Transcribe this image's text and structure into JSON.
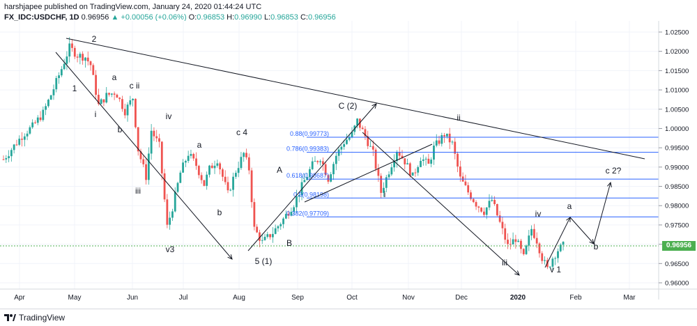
{
  "header": {
    "line1": "harshjapee published on TradingView.com, January 24, 2020 01:44:24 UTC",
    "symbol": "FX_IDC:USDCHF, 1D",
    "last": "0.96956",
    "change": "+0.00056 (+0.06%)",
    "o_label": "O:",
    "o_val": "0.96853",
    "h_label": "H:",
    "h_val": "0.96990",
    "l_label": "L:",
    "l_val": "0.96853",
    "c_label": "C:",
    "c_val": "0.96956"
  },
  "footer": {
    "brand": "TradingView"
  },
  "colors": {
    "up": "#26a69a",
    "down": "#ef5350",
    "fib": "#2962ff",
    "price_line": "#4caf50",
    "trend": "#131722"
  },
  "chart_data": {
    "type": "candlestick",
    "symbol": "FX_IDC:USDCHF",
    "timeframe": "1D",
    "x_ticks": [
      "Apr",
      "May",
      "Jun",
      "Jul",
      "Aug",
      "Sep",
      "Oct",
      "Nov",
      "Dec",
      "2020",
      "Feb",
      "Mar"
    ],
    "ylim": [
      0.955,
      1.0275
    ],
    "y_ticks": [
      "1.02500",
      "1.02000",
      "1.01500",
      "1.01000",
      "1.00500",
      "1.00000",
      "0.99500",
      "0.99000",
      "0.98500",
      "0.98000",
      "0.97500",
      "0.97000",
      "0.96500",
      "0.96000"
    ],
    "current_price": 0.96956,
    "current_price_label": "0.96956",
    "close_path": [
      [
        0,
        0.992
      ],
      [
        8,
        0.9955
      ],
      [
        15,
        0.9985
      ],
      [
        22,
        1.0005
      ],
      [
        30,
        1.004
      ],
      [
        37,
        1.0095
      ],
      [
        44,
        1.0155
      ],
      [
        50,
        1.021
      ],
      [
        56,
        1.019
      ],
      [
        62,
        1.0185
      ],
      [
        66,
        1.0165
      ],
      [
        72,
        1.006
      ],
      [
        78,
        1.0085
      ],
      [
        85,
        1.0095
      ],
      [
        92,
        1.0045
      ],
      [
        98,
        1.008
      ],
      [
        102,
        0.9945
      ],
      [
        108,
        0.9875
      ],
      [
        112,
        0.9995
      ],
      [
        118,
        0.9955
      ],
      [
        124,
        0.9745
      ],
      [
        128,
        0.9795
      ],
      [
        134,
        0.9885
      ],
      [
        140,
        0.9935
      ],
      [
        146,
        0.9905
      ],
      [
        152,
        0.9855
      ],
      [
        156,
        0.9895
      ],
      [
        162,
        0.992
      ],
      [
        170,
        0.983
      ],
      [
        176,
        0.989
      ],
      [
        182,
        0.9935
      ],
      [
        186,
        0.9895
      ],
      [
        190,
        0.974
      ],
      [
        196,
        0.9705
      ],
      [
        204,
        0.973
      ],
      [
        212,
        0.9765
      ],
      [
        220,
        0.9805
      ],
      [
        228,
        0.9865
      ],
      [
        234,
        0.9905
      ],
      [
        240,
        0.9925
      ],
      [
        246,
        0.987
      ],
      [
        252,
        0.993
      ],
      [
        258,
        0.9965
      ],
      [
        264,
        0.9985
      ],
      [
        268,
        1.002
      ],
      [
        274,
        0.998
      ],
      [
        280,
        0.9935
      ],
      [
        286,
        0.9835
      ],
      [
        292,
        0.989
      ],
      [
        298,
        0.9945
      ],
      [
        304,
        0.9915
      ],
      [
        310,
        0.9875
      ],
      [
        316,
        0.9925
      ],
      [
        322,
        0.9905
      ],
      [
        326,
        0.995
      ],
      [
        334,
        0.9985
      ],
      [
        340,
        0.996
      ],
      [
        346,
        0.987
      ],
      [
        352,
        0.9835
      ],
      [
        358,
        0.9805
      ],
      [
        364,
        0.9785
      ],
      [
        370,
        0.9815
      ],
      [
        376,
        0.9755
      ],
      [
        382,
        0.9695
      ],
      [
        388,
        0.9715
      ],
      [
        394,
        0.9665
      ],
      [
        400,
        0.974
      ],
      [
        404,
        0.971
      ],
      [
        408,
        0.9665
      ],
      [
        412,
        0.9635
      ],
      [
        416,
        0.9665
      ],
      [
        420,
        0.9685
      ],
      [
        424,
        0.9696
      ]
    ],
    "fib_levels": [
      {
        "label": "0.88(0.99773)",
        "value": 0.99773
      },
      {
        "label": "0.786(0.99383)",
        "value": 0.99383
      },
      {
        "label": "0.618(0.98687)",
        "value": 0.98687
      },
      {
        "label": "0.5(0.98198)",
        "value": 0.98198
      },
      {
        "label": "0.382(0.97709)",
        "value": 0.97709
      }
    ],
    "wave_labels": [
      {
        "text": "2",
        "x": 135,
        "y": 60
      },
      {
        "text": "1",
        "x": 107,
        "y": 131
      },
      {
        "text": "a",
        "x": 164,
        "y": 115
      },
      {
        "text": "c ii",
        "x": 193,
        "y": 127
      },
      {
        "text": "i",
        "x": 137,
        "y": 168
      },
      {
        "text": "b",
        "x": 172,
        "y": 190
      },
      {
        "text": "iv",
        "x": 242,
        "y": 171
      },
      {
        "text": "iii",
        "x": 198,
        "y": 278
      },
      {
        "text": "a",
        "x": 286,
        "y": 212
      },
      {
        "text": "c 4",
        "x": 347,
        "y": 194
      },
      {
        "text": "b",
        "x": 315,
        "y": 309
      },
      {
        "text": "v3",
        "x": 244,
        "y": 362
      },
      {
        "text": "A",
        "x": 401,
        "y": 248
      },
      {
        "text": "B",
        "x": 415,
        "y": 353
      },
      {
        "text": "5 (1)",
        "x": 378,
        "y": 379
      },
      {
        "text": "C (2)",
        "x": 499,
        "y": 156
      },
      {
        "text": "ii",
        "x": 658,
        "y": 173
      },
      {
        "text": "i",
        "x": 552,
        "y": 283
      },
      {
        "text": "iii",
        "x": 724,
        "y": 381
      },
      {
        "text": "iv",
        "x": 772,
        "y": 311
      },
      {
        "text": "v 1",
        "x": 797,
        "y": 391
      },
      {
        "text": "a",
        "x": 817,
        "y": 300
      },
      {
        "text": "c 2?",
        "x": 880,
        "y": 249
      },
      {
        "text": "b",
        "x": 855,
        "y": 358
      }
    ]
  }
}
